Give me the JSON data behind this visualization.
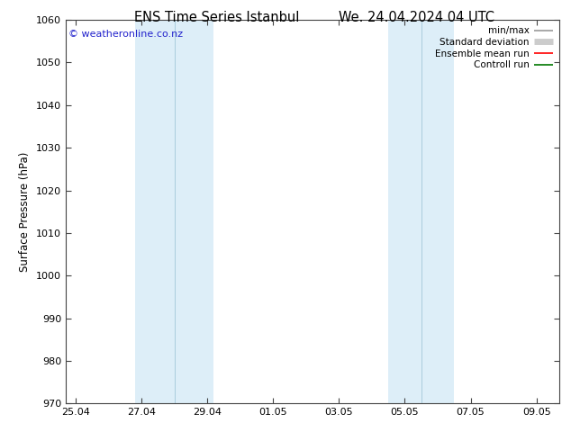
{
  "title_left": "ENS Time Series Istanbul",
  "title_right": "We. 24.04.2024 04 UTC",
  "ylabel": "Surface Pressure (hPa)",
  "ylim": [
    970,
    1060
  ],
  "yticks": [
    970,
    980,
    990,
    1000,
    1010,
    1020,
    1030,
    1040,
    1050,
    1060
  ],
  "xtick_labels": [
    "25.04",
    "27.04",
    "29.04",
    "01.05",
    "03.05",
    "05.05",
    "07.05",
    "09.05"
  ],
  "xtick_positions": [
    0,
    2,
    4,
    6,
    8,
    10,
    12,
    14
  ],
  "xlim": [
    -0.3,
    14.7
  ],
  "shaded_bands": [
    {
      "x_start": 1.8,
      "x_end": 4.2,
      "color": "#ddeef8"
    },
    {
      "x_start": 9.5,
      "x_end": 11.5,
      "color": "#ddeef8"
    }
  ],
  "band_lines": [
    {
      "x": 3.0,
      "color": "#aaccdd",
      "lw": 0.7
    },
    {
      "x": 10.5,
      "color": "#aaccdd",
      "lw": 0.7
    }
  ],
  "copyright_text": "© weatheronline.co.nz",
  "copyright_color": "#2222cc",
  "legend_items": [
    {
      "label": "min/max",
      "color": "#999999",
      "lw": 1.2
    },
    {
      "label": "Standard deviation",
      "color": "#cccccc",
      "lw": 5
    },
    {
      "label": "Ensemble mean run",
      "color": "#ff0000",
      "lw": 1.2
    },
    {
      "label": "Controll run",
      "color": "#007700",
      "lw": 1.2
    }
  ],
  "bg_color": "#ffffff",
  "axes_bg_color": "#ffffff",
  "title_fontsize": 10.5,
  "tick_fontsize": 8,
  "ylabel_fontsize": 8.5,
  "copyright_fontsize": 8
}
